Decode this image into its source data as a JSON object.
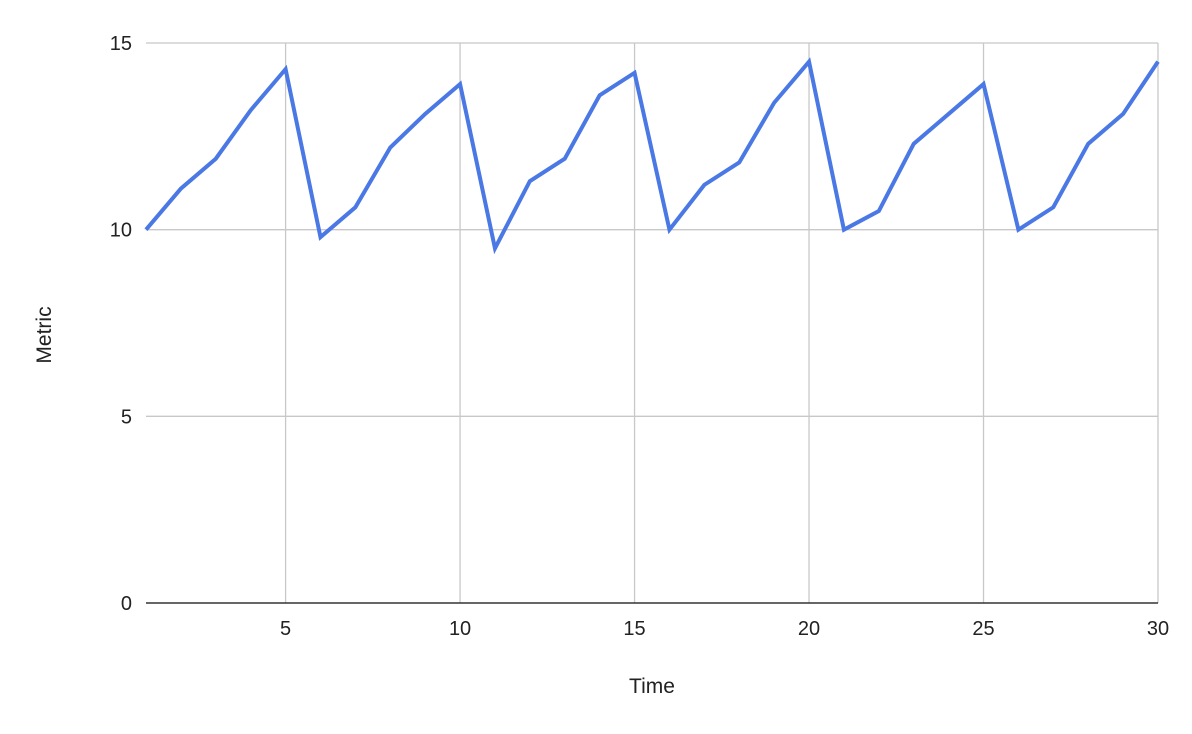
{
  "chart_data": {
    "type": "line",
    "title": "",
    "xlabel": "Time",
    "ylabel": "Metric",
    "x": [
      1,
      2,
      3,
      4,
      5,
      6,
      7,
      8,
      9,
      10,
      11,
      12,
      13,
      14,
      15,
      16,
      17,
      18,
      19,
      20,
      21,
      22,
      23,
      24,
      25,
      26,
      27,
      28,
      29,
      30
    ],
    "series": [
      {
        "values": [
          10.0,
          11.1,
          11.9,
          13.2,
          14.3,
          9.8,
          10.6,
          12.2,
          13.1,
          13.9,
          9.5,
          11.3,
          11.9,
          13.6,
          14.2,
          10.0,
          11.2,
          11.8,
          13.4,
          14.5,
          10.0,
          10.5,
          12.3,
          13.1,
          13.9,
          10.0,
          10.6,
          12.3,
          13.1,
          14.5
        ],
        "color": "#4a78e4"
      }
    ],
    "xlim": [
      1,
      30
    ],
    "ylim": [
      0,
      15
    ],
    "x_ticks": [
      5,
      10,
      15,
      20,
      25,
      30
    ],
    "y_ticks": [
      0,
      5,
      10,
      15
    ],
    "grid": true,
    "legend": "none"
  }
}
